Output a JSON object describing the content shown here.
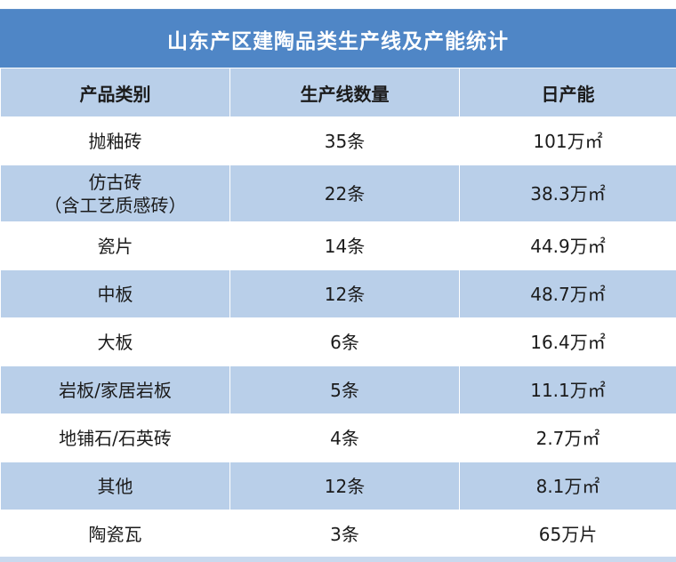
{
  "title": "山东产区建陶品类生产线及产能统计",
  "headers": [
    "产品类别",
    "生产线数量",
    "日产能"
  ],
  "rows": [
    {
      "category": "抛釉砖",
      "category_sub": "",
      "lines": "35条",
      "capacity": "101万㎡"
    },
    {
      "category": "仿古砖",
      "category_sub": "（含工艺质感砖）",
      "lines": "22条",
      "capacity": "38.3万㎡"
    },
    {
      "category": "瓷片",
      "category_sub": "",
      "lines": "14条",
      "capacity": "44.9万㎡"
    },
    {
      "category": "中板",
      "category_sub": "",
      "lines": "12条",
      "capacity": "48.7万㎡"
    },
    {
      "category": "大板",
      "category_sub": "",
      "lines": "6条",
      "capacity": "16.4万㎡"
    },
    {
      "category": "岩板/家居岩板",
      "category_sub": "",
      "lines": "5条",
      "capacity": "11.1万㎡"
    },
    {
      "category": "地铺石/石英砖",
      "category_sub": "",
      "lines": "4条",
      "capacity": "2.7万㎡"
    },
    {
      "category": "其他",
      "category_sub": "",
      "lines": "12条",
      "capacity": "8.1万㎡"
    },
    {
      "category": "陶瓷瓦",
      "category_sub": "",
      "lines": "3条",
      "capacity": "65万片"
    }
  ],
  "colors": {
    "title_bg": "#4f86c6",
    "band_bg": "#b9cfe9",
    "row_bg": "#ffffff"
  }
}
